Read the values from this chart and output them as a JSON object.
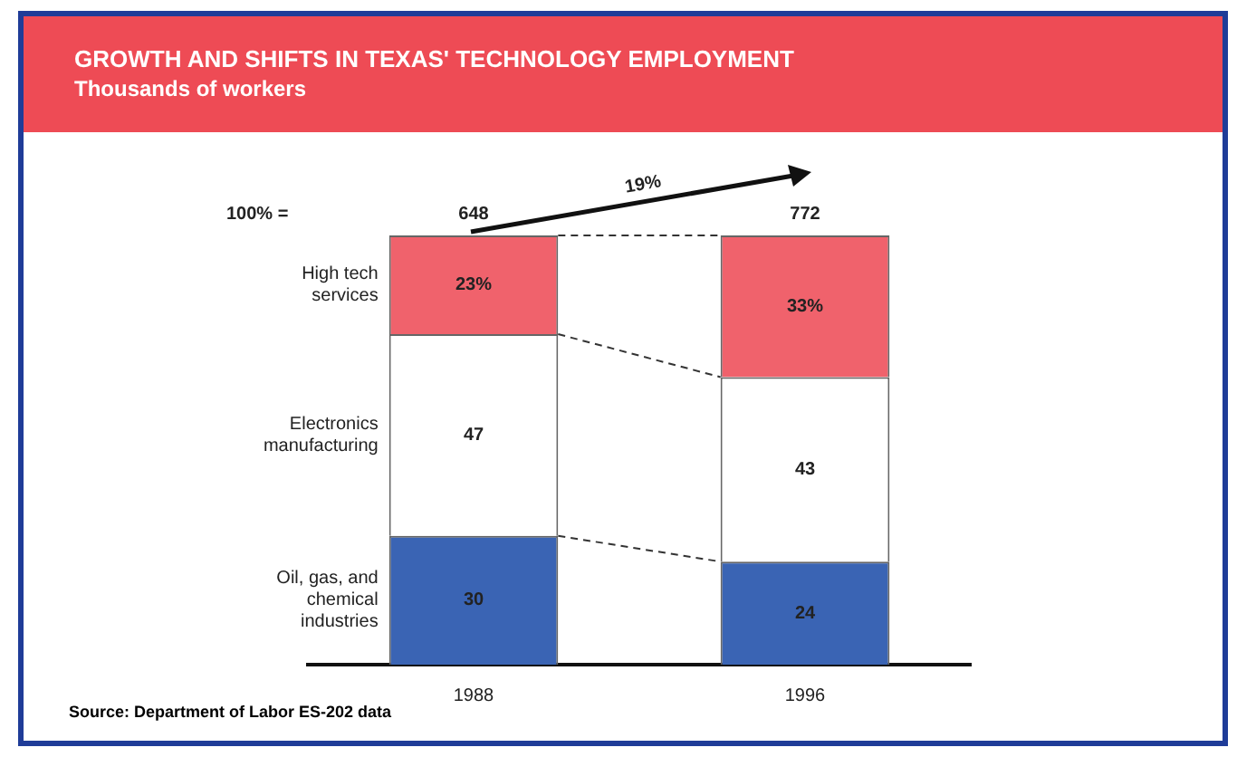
{
  "chart_data": {
    "type": "bar",
    "title": "GROWTH AND SHIFTS IN TEXAS' TECHNOLOGY EMPLOYMENT",
    "subtitle": "Thousands of workers",
    "categories": [
      "1988",
      "1996"
    ],
    "stacked": true,
    "legend": false,
    "ylim": [
      0,
      100
    ],
    "tick_labels": "x",
    "series": [
      {
        "name": "Oil, gas, and chemical industries",
        "color": "#3a64b4",
        "values": [
          30,
          24
        ],
        "value_labels": [
          "30",
          "24"
        ]
      },
      {
        "name": "Electronics manufacturing",
        "color": "#ffffff",
        "values": [
          47,
          43
        ],
        "value_labels": [
          "47",
          "43"
        ]
      },
      {
        "name": "High tech services",
        "color": "#f0626c",
        "values": [
          23,
          33
        ],
        "value_labels": [
          "23%",
          "33%"
        ]
      }
    ],
    "annotations": [
      "100% =",
      "19%",
      "Source: Department of Labor ES-202 data",
      {
        "text": "648",
        "x": "1988",
        "y": 100
      },
      {
        "text": "772",
        "x": "1996",
        "y": 100
      }
    ]
  }
}
